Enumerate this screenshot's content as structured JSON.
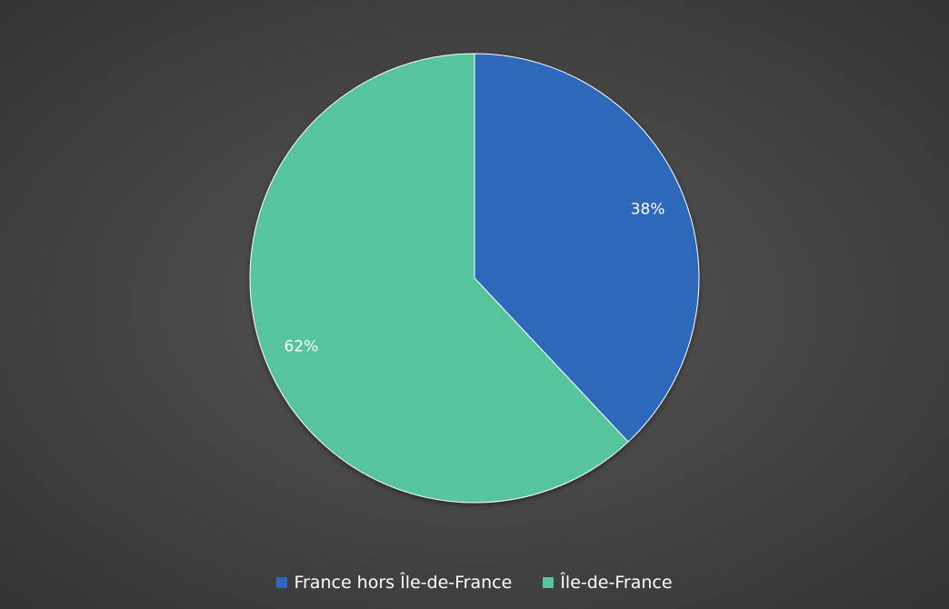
{
  "chart_data": {
    "type": "pie",
    "categories": [
      "France hors Île-de-France",
      "Île-de-France"
    ],
    "values": [
      38,
      62
    ],
    "data_labels": [
      "38%",
      "62%"
    ],
    "colors": [
      "#2e67bb",
      "#57c49c"
    ],
    "start_angle": "12 o'clock, clockwise",
    "legend_position": "bottom",
    "title": ""
  },
  "legend": {
    "items": [
      {
        "label": "France hors Île-de-France",
        "color": "#2e67bb"
      },
      {
        "label": "Île-de-France",
        "color": "#57c49c"
      }
    ]
  },
  "colors": {
    "background": "#474747",
    "label_text": "#ffffff",
    "slice_border": "#ffffff"
  }
}
